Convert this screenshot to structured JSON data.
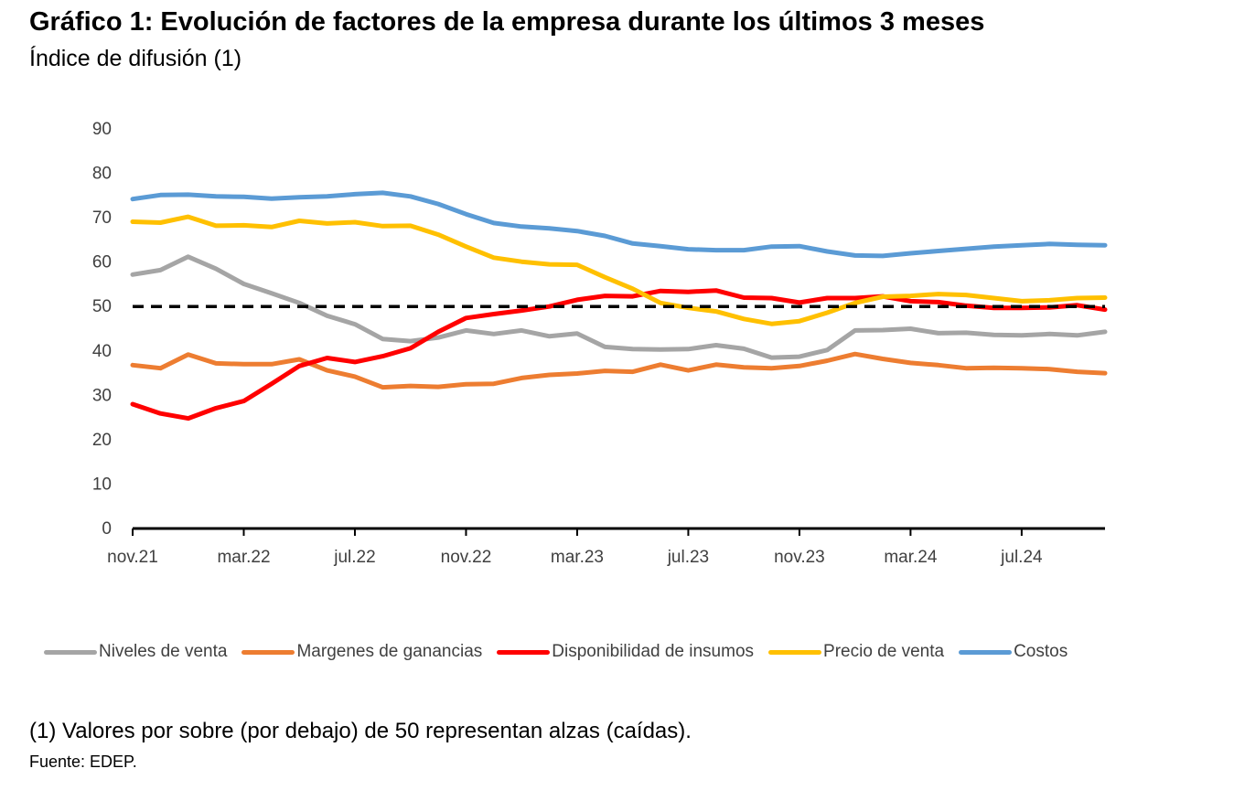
{
  "header": {
    "title": "Gráfico 1: Evolución de factores de la empresa durante los últimos 3 meses",
    "subtitle": "Índice de difusión (1)"
  },
  "footer": {
    "note": "(1) Valores por sobre (por debajo) de 50 representan alzas (caídas).",
    "source": "Fuente: EDEP."
  },
  "chart_data": {
    "type": "line",
    "x": [
      "nov.21",
      "dic.21",
      "ene.22",
      "feb.22",
      "mar.22",
      "abr.22",
      "may.22",
      "jun.22",
      "jul.22",
      "ago.22",
      "sep.22",
      "oct.22",
      "nov.22",
      "dic.22",
      "ene.23",
      "feb.23",
      "mar.23",
      "abr.23",
      "may.23",
      "jun.23",
      "jul.23",
      "ago.23",
      "sep.23",
      "oct.23",
      "nov.23",
      "dic.23",
      "ene.24",
      "feb.24",
      "mar.24",
      "abr.24",
      "may.24",
      "jun.24",
      "jul.24",
      "ago.24",
      "sep.24",
      "oct.24"
    ],
    "x_tick_labels": [
      "nov.21",
      "mar.22",
      "jul.22",
      "nov.22",
      "mar.23",
      "jul.23",
      "nov.23",
      "mar.24",
      "jul.24"
    ],
    "ylim": [
      0,
      90
    ],
    "y_ticks": [
      0,
      10,
      20,
      30,
      40,
      50,
      60,
      70,
      80,
      90
    ],
    "reference_line": {
      "y": 50,
      "style": "dashed",
      "color": "#000000"
    },
    "legend_position": "bottom",
    "grid": false,
    "series": [
      {
        "name": "Niveles de venta",
        "color": "#A5A5A5",
        "values": [
          57.2,
          58.2,
          61.2,
          58.5,
          55.1,
          53.0,
          50.8,
          47.9,
          46.0,
          42.7,
          42.2,
          43.0,
          44.6,
          43.8,
          44.6,
          43.3,
          43.9,
          40.9,
          40.4,
          40.3,
          40.4,
          41.3,
          40.5,
          38.5,
          38.7,
          40.2,
          44.6,
          44.7,
          45.0,
          44.0,
          44.1,
          43.6,
          43.5,
          43.8,
          43.5,
          44.3
        ]
      },
      {
        "name": "Margenes de ganancias",
        "color": "#ED7D31",
        "values": [
          36.8,
          36.1,
          39.2,
          37.2,
          37.0,
          37.0,
          38.1,
          35.6,
          34.2,
          31.8,
          32.1,
          31.9,
          32.5,
          32.6,
          33.9,
          34.6,
          34.9,
          35.5,
          35.3,
          36.9,
          35.6,
          36.9,
          36.3,
          36.1,
          36.6,
          37.8,
          39.3,
          38.2,
          37.3,
          36.8,
          36.1,
          36.2,
          36.1,
          35.9,
          35.3,
          35.0
        ]
      },
      {
        "name": "Disponibilidad de insumos",
        "color": "#FF0000",
        "values": [
          28.0,
          25.9,
          24.8,
          27.1,
          28.7,
          32.6,
          36.6,
          38.4,
          37.5,
          38.8,
          40.6,
          44.3,
          47.4,
          48.3,
          49.1,
          50.0,
          51.5,
          52.4,
          52.3,
          53.5,
          53.3,
          53.6,
          52.0,
          51.9,
          50.9,
          51.9,
          51.9,
          52.3,
          51.2,
          51.0,
          50.2,
          49.7,
          49.7,
          49.8,
          50.3,
          49.3
        ]
      },
      {
        "name": "Precio de venta",
        "color": "#FFC000",
        "values": [
          69.1,
          68.9,
          70.2,
          68.2,
          68.3,
          67.9,
          69.3,
          68.7,
          69.0,
          68.1,
          68.2,
          66.2,
          63.5,
          61.0,
          60.1,
          59.5,
          59.4,
          56.6,
          54.0,
          50.8,
          49.7,
          48.9,
          47.2,
          46.1,
          46.7,
          48.6,
          50.8,
          52.2,
          52.4,
          52.8,
          52.6,
          51.9,
          51.2,
          51.4,
          51.9,
          52.0
        ]
      },
      {
        "name": "Costos",
        "color": "#5B9BD5",
        "values": [
          74.2,
          75.1,
          75.2,
          74.8,
          74.7,
          74.3,
          74.6,
          74.8,
          75.3,
          75.6,
          74.8,
          73.1,
          70.8,
          68.8,
          68.0,
          67.6,
          67.0,
          65.9,
          64.2,
          63.6,
          62.9,
          62.7,
          62.7,
          63.5,
          63.6,
          62.4,
          61.5,
          61.4,
          62.0,
          62.5,
          63.0,
          63.5,
          63.8,
          64.1,
          63.9,
          63.8
        ]
      }
    ]
  }
}
